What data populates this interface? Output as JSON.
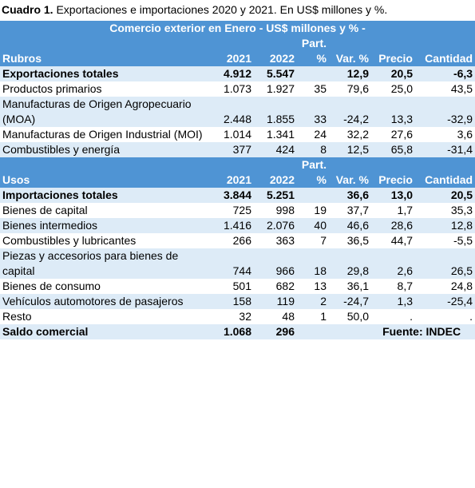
{
  "caption": {
    "label": "Cuadro 1.",
    "text": "Exportaciones e importaciones 2020 y 2021. En US$ millones y %."
  },
  "table": {
    "title": "Comercio exterior en Enero - US$ millones y % -",
    "sections": [
      {
        "header": [
          "Rubros",
          "2021",
          "2022",
          "Part. %",
          "Var. %",
          "Precio",
          "Cantidad"
        ],
        "rows": [
          [
            "Exportaciones totales",
            "4.912",
            "5.547",
            "",
            "12,9",
            "20,5",
            "-6,3"
          ],
          [
            "Productos primarios",
            "1.073",
            "1.927",
            "35",
            "79,6",
            "25,0",
            "43,5"
          ],
          [
            "Manufacturas de Origen Agropecuario (MOA)",
            "2.448",
            "1.855",
            "33",
            "-24,2",
            "13,3",
            "-32,9"
          ],
          [
            "Manufacturas de Origen Industrial (MOI)",
            "1.014",
            "1.341",
            "24",
            "32,2",
            "27,6",
            "3,6"
          ],
          [
            "Combustibles y energía",
            "377",
            "424",
            "8",
            "12,5",
            "65,8",
            "-31,4"
          ]
        ]
      },
      {
        "header": [
          "Usos",
          "2021",
          "2022",
          "Part. %",
          "Var. %",
          "Precio",
          "Cantidad"
        ],
        "rows": [
          [
            "Importaciones totales",
            "3.844",
            "5.251",
            "",
            "36,6",
            "13,0",
            "20,5"
          ],
          [
            "Bienes de capital",
            "725",
            "998",
            "19",
            "37,7",
            "1,7",
            "35,3"
          ],
          [
            "Bienes intermedios",
            "1.416",
            "2.076",
            "40",
            "46,6",
            "28,6",
            "12,8"
          ],
          [
            "Combustibles y lubricantes",
            "266",
            "363",
            "7",
            "36,5",
            "44,7",
            "-5,5"
          ],
          [
            "Piezas y accesorios para bienes de capital",
            "744",
            "966",
            "18",
            "29,8",
            "2,6",
            "26,5"
          ],
          [
            "Bienes de consumo",
            "501",
            "682",
            "13",
            "36,1",
            "8,7",
            "24,8"
          ],
          [
            "Vehículos automotores de pasajeros",
            "158",
            "119",
            "2",
            "-24,7",
            "1,3",
            "-25,4"
          ],
          [
            "Resto",
            "32",
            "48",
            "1",
            "50,0",
            ".",
            "."
          ]
        ]
      }
    ],
    "balance": {
      "label": "Saldo comercial",
      "v2021": "1.068",
      "v2022": "296",
      "source": "Fuente: INDEC"
    }
  }
}
